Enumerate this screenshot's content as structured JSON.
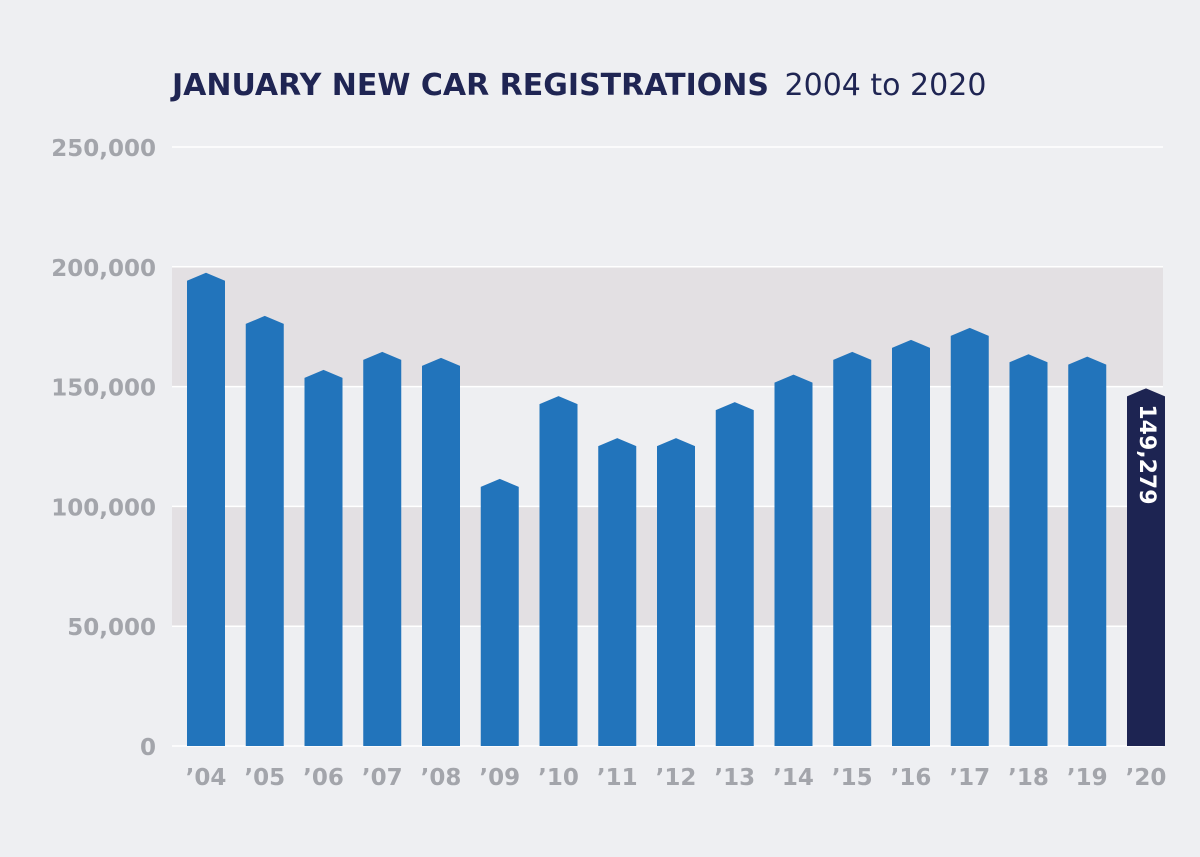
{
  "title": {
    "main": "JANUARY NEW CAR REGISTRATIONS",
    "sub": "2004 to 2020"
  },
  "colors": {
    "background": "#eeeff2",
    "band": "#e3e0e3",
    "gridline": "#ffffff",
    "bar": "#2274bb",
    "highlight_bar": "#1d2452",
    "title": "#1f2553",
    "tick_label": "#a3a5ab"
  },
  "chart_data": {
    "type": "bar",
    "title": "JANUARY NEW CAR REGISTRATIONS 2004 to 2020",
    "xlabel": "",
    "ylabel": "",
    "ylim": [
      0,
      250000
    ],
    "yticks": [
      0,
      50000,
      100000,
      150000,
      200000,
      250000
    ],
    "ytick_labels": [
      "0",
      "50,000",
      "100,000",
      "150,000",
      "200,000",
      "250,000"
    ],
    "grid": "horizontal",
    "shaded_bands": [
      [
        50000,
        100000
      ],
      [
        150000,
        200000
      ]
    ],
    "categories": [
      "’04",
      "’05",
      "’06",
      "’07",
      "’08",
      "’09",
      "’10",
      "’11",
      "’12",
      "’13",
      "’14",
      "’15",
      "’16",
      "’17",
      "’18",
      "’19",
      "’20"
    ],
    "values": [
      197500,
      179500,
      157000,
      164500,
      162000,
      111500,
      146000,
      128500,
      128500,
      143500,
      155000,
      164500,
      169500,
      174500,
      163500,
      162500,
      149279
    ],
    "highlight_index": 16,
    "annotations": [
      {
        "index": 16,
        "text": "149,279"
      }
    ]
  }
}
